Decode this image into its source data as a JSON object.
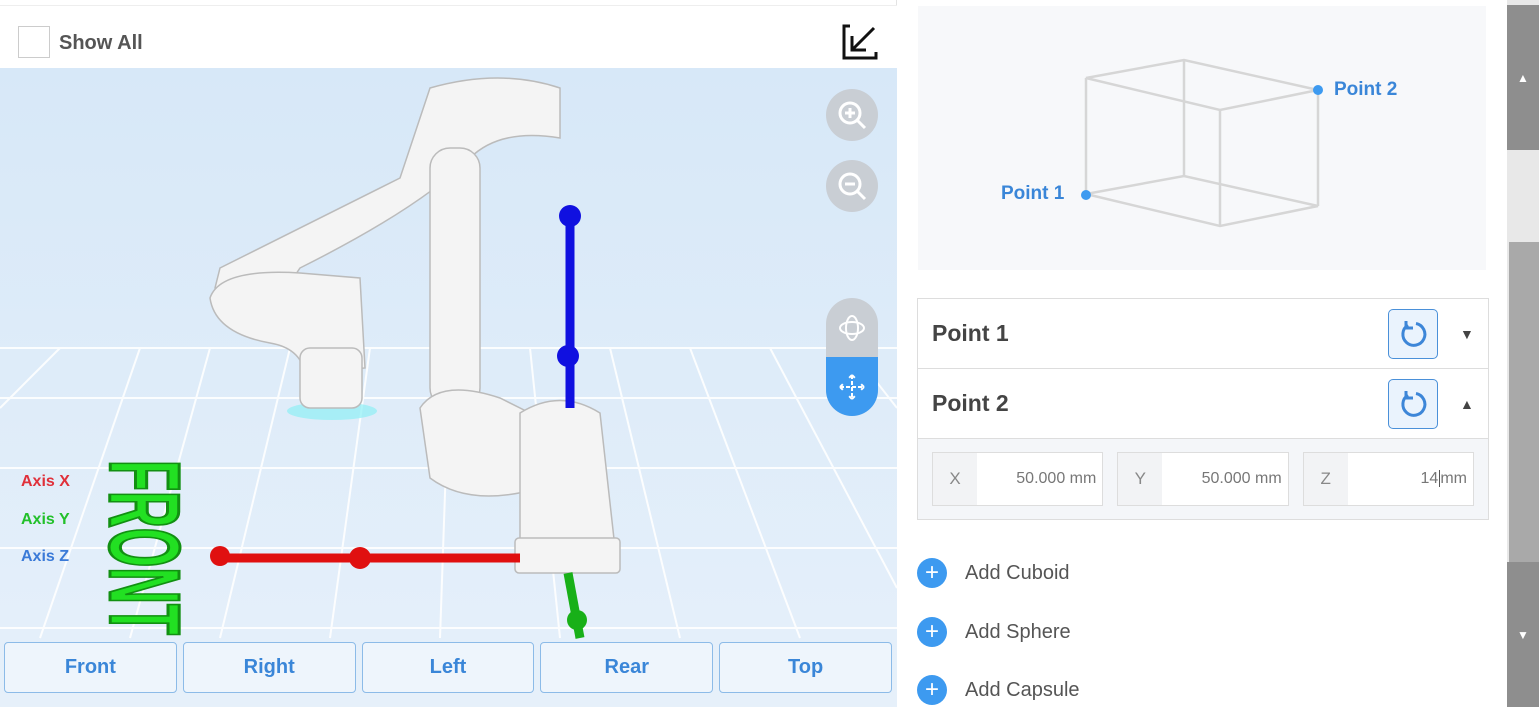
{
  "toolbar": {
    "show_all": "Show All",
    "show_all_checked": false
  },
  "viewport": {
    "axes": [
      {
        "label": "Axis X",
        "color": "#e0303a"
      },
      {
        "label": "Axis Y",
        "color": "#22c02a"
      },
      {
        "label": "Axis Z",
        "color": "#3a7ad8"
      }
    ],
    "floor_text": "FRONT"
  },
  "views": [
    "Front",
    "Right",
    "Left",
    "Rear",
    "Top"
  ],
  "diagram": {
    "point1": "Point 1",
    "point2": "Point 2"
  },
  "points": [
    {
      "title": "Point 1",
      "expanded": false
    },
    {
      "title": "Point 2",
      "expanded": true
    }
  ],
  "fields": [
    {
      "label": "X",
      "value": "50.000 mm"
    },
    {
      "label": "Y",
      "value": "50.000 mm"
    },
    {
      "label": "Z",
      "value": "14",
      "unit": "mm"
    }
  ],
  "add": [
    "Add Cuboid",
    "Add Sphere",
    "Add Capsule"
  ],
  "colors": {
    "accent": "#3d9af0"
  }
}
